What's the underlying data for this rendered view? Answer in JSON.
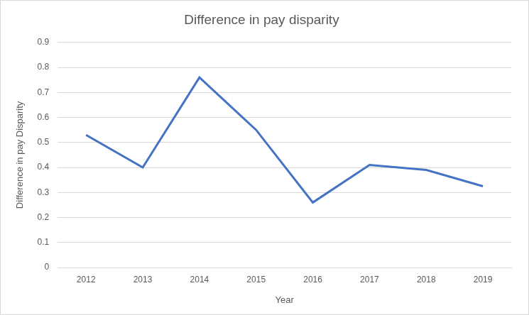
{
  "chart_data": {
    "type": "line",
    "title": "Difference in pay disparity",
    "x_label": "Year",
    "y_label": "Difference in pay Disparity",
    "categories": [
      "2012",
      "2013",
      "2014",
      "2015",
      "2016",
      "2017",
      "2018",
      "2019"
    ],
    "values": [
      0.53,
      0.4,
      0.76,
      0.55,
      0.26,
      0.41,
      0.39,
      0.325
    ],
    "color": "#4472c4",
    "ylim": [
      0,
      0.9
    ],
    "yticks": [
      0,
      0.1,
      0.2,
      0.3,
      0.4,
      0.5,
      0.6,
      0.7,
      0.8,
      0.9
    ],
    "grid": true
  }
}
